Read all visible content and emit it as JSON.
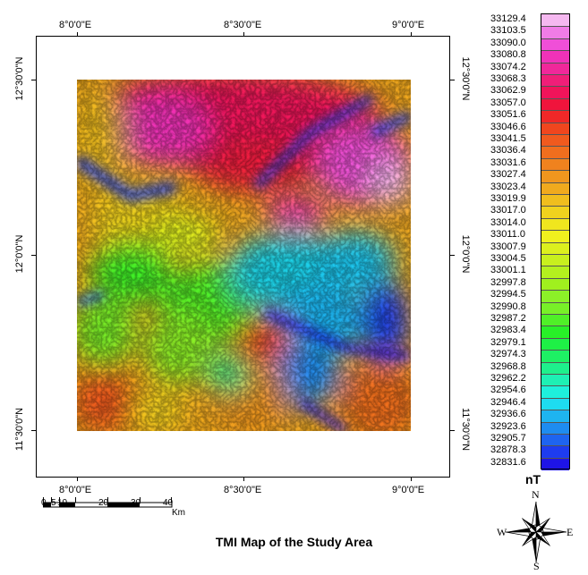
{
  "map": {
    "title": "TMI Map of the Study Area",
    "top_lon_labels": [
      "8°0'0\"E",
      "8°30'0\"E",
      "9°0'0\"E"
    ],
    "bottom_lon_labels": [
      "8°0'0\"E",
      "8°30'0\"E",
      "9°0'0\"E"
    ],
    "left_lat_labels": [
      "12°30'0\"N",
      "12°0'0\"N",
      "11°30'0\"N"
    ],
    "right_lat_labels": [
      "12°30'0\"N",
      "12°0'0\"N",
      "11°30'0\"N"
    ]
  },
  "legend": {
    "unit": "nT",
    "values": [
      "33129.4",
      "33103.5",
      "33090.0",
      "33080.8",
      "33074.2",
      "33068.3",
      "33062.9",
      "33057.0",
      "33051.6",
      "33046.6",
      "33041.5",
      "33036.4",
      "33031.6",
      "33027.4",
      "33023.4",
      "33019.9",
      "33017.0",
      "33014.0",
      "33011.0",
      "33007.9",
      "33004.5",
      "33001.1",
      "32997.8",
      "32994.5",
      "32990.8",
      "32987.2",
      "32983.4",
      "32979.1",
      "32974.3",
      "32968.8",
      "32962.2",
      "32954.6",
      "32946.4",
      "32936.6",
      "32923.6",
      "32905.7",
      "32878.3",
      "32831.6"
    ],
    "colors": [
      "#f5b8f0",
      "#f07ce6",
      "#f04fd8",
      "#f032b8",
      "#f0289a",
      "#f01e78",
      "#f0145a",
      "#f0143c",
      "#f02828",
      "#f0461e",
      "#f05a1e",
      "#f06e1e",
      "#f0821e",
      "#f0961e",
      "#f0aa1e",
      "#f0be1e",
      "#f0d21e",
      "#f0e61e",
      "#f0f01e",
      "#dcf01e",
      "#c8f01e",
      "#b4f01e",
      "#a0f01e",
      "#8cf028",
      "#78f028",
      "#50f028",
      "#28f028",
      "#1ef046",
      "#1ef064",
      "#1ef08c",
      "#1ef0b4",
      "#1ef0dc",
      "#1edcf0",
      "#1eb4f0",
      "#1e8cf0",
      "#1e64f0",
      "#1e3cf0",
      "#1e14e6"
    ]
  },
  "scale": {
    "ticks": [
      "0",
      "5",
      "10",
      "20",
      "30",
      "40"
    ],
    "unit": "Km"
  },
  "compass": {
    "n": "N",
    "s": "S",
    "e": "E",
    "w": "W"
  }
}
